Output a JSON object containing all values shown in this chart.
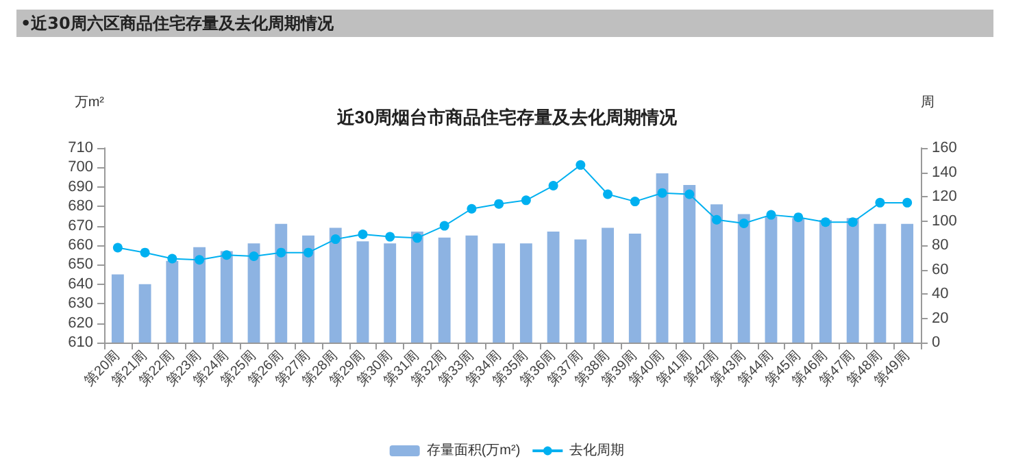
{
  "chart_data": {
    "type": "bar",
    "title": "近30周烟台市商品住宅存量及去化周期情况",
    "subtitle": "•近30周六区商品住宅存量及去化周期情况",
    "ylabel": "万m²",
    "y2label": "周",
    "categories": [
      "第20周",
      "第21周",
      "第22周",
      "第23周",
      "第24周",
      "第25周",
      "第26周",
      "第27周",
      "第28周",
      "第29周",
      "第30周",
      "第31周",
      "第32周",
      "第33周",
      "第34周",
      "第35周",
      "第36周",
      "第37周",
      "第38周",
      "第39周",
      "第40周",
      "第41周",
      "第42周",
      "第43周",
      "第44周",
      "第45周",
      "第46周",
      "第47周",
      "第48周",
      "第49周"
    ],
    "series": [
      {
        "name": "存量面积(万m²)",
        "color": "#8db3e2",
        "values": [
          645,
          640,
          652,
          659,
          657,
          661,
          671,
          665,
          669,
          662,
          661,
          667,
          664,
          665,
          661,
          661,
          667,
          663,
          669,
          666,
          697,
          691,
          681,
          676,
          675,
          674,
          673,
          674,
          671,
          671
        ]
      },
      {
        "name": "去化周期",
        "type": "line",
        "axis": "y2",
        "color": "#00b0f0",
        "marker": "circle",
        "values": [
          78,
          74,
          69,
          68,
          72,
          71,
          74,
          74,
          85,
          89,
          87,
          86,
          96,
          110,
          114,
          117,
          129,
          146,
          122,
          116,
          123,
          122,
          101,
          98,
          105,
          103,
          99,
          99,
          115,
          115
        ]
      }
    ],
    "ylim": [
      610,
      710
    ],
    "yticks": [
      610,
      620,
      630,
      640,
      650,
      660,
      670,
      680,
      690,
      700,
      710
    ],
    "y2lim": [
      0,
      160
    ],
    "y2ticks": [
      0,
      20,
      40,
      60,
      80,
      100,
      120,
      140,
      160
    ],
    "grid": false,
    "legend": "bottom"
  }
}
